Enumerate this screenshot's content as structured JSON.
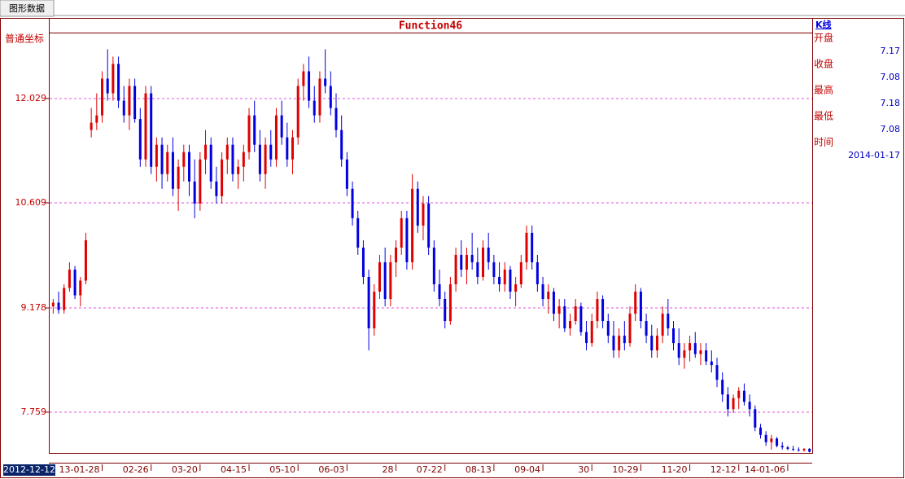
{
  "tab": "图形数据",
  "chart_data": {
    "type": "candlestick",
    "title": "Function46",
    "y_label": "普通坐标",
    "up_color": "#e00000",
    "down_color": "#0000e0",
    "grid": true,
    "ylim": [
      7.204,
      12.927
    ],
    "yticks": [
      7.759,
      9.178,
      10.609,
      12.029
    ],
    "categories": [
      "2012-12-12",
      null,
      null,
      null,
      null,
      null,
      null,
      null,
      null,
      "13-01-28",
      null,
      null,
      null,
      null,
      null,
      null,
      null,
      null,
      "02-26",
      null,
      null,
      null,
      null,
      null,
      null,
      null,
      null,
      "03-20",
      null,
      null,
      null,
      null,
      null,
      null,
      null,
      null,
      "04-15",
      null,
      null,
      null,
      null,
      null,
      null,
      null,
      null,
      "05-10",
      null,
      null,
      null,
      null,
      null,
      null,
      null,
      null,
      "06-03",
      null,
      null,
      null,
      null,
      null,
      null,
      null,
      null,
      "28",
      null,
      null,
      null,
      null,
      null,
      null,
      null,
      null,
      "07-22",
      null,
      null,
      null,
      null,
      null,
      null,
      null,
      null,
      "08-13",
      null,
      null,
      null,
      null,
      null,
      null,
      null,
      null,
      "09-04",
      null,
      null,
      null,
      null,
      null,
      null,
      null,
      null,
      "30",
      null,
      null,
      null,
      null,
      null,
      null,
      null,
      null,
      "10-29",
      null,
      null,
      null,
      null,
      null,
      null,
      null,
      null,
      "11-20",
      null,
      null,
      null,
      null,
      null,
      null,
      null,
      null,
      "12-12",
      null,
      null,
      null,
      null,
      null,
      null,
      null,
      null,
      "14-01-06",
      null,
      null,
      null,
      null
    ],
    "ohlc": [
      [
        9.2,
        9.3,
        9.1,
        9.25
      ],
      [
        9.25,
        9.4,
        9.1,
        9.15
      ],
      [
        9.15,
        9.5,
        9.1,
        9.45
      ],
      [
        9.45,
        9.8,
        9.4,
        9.7
      ],
      [
        9.7,
        9.75,
        9.3,
        9.35
      ],
      [
        9.35,
        9.6,
        9.2,
        9.55
      ],
      [
        9.55,
        10.2,
        9.5,
        10.1
      ],
      [
        11.6,
        11.9,
        11.5,
        11.7
      ],
      [
        11.7,
        12.1,
        11.6,
        11.8
      ],
      [
        11.8,
        12.4,
        11.7,
        12.3
      ],
      [
        12.3,
        12.7,
        12.0,
        12.1
      ],
      [
        12.1,
        12.6,
        12.0,
        12.5
      ],
      [
        12.5,
        12.6,
        11.9,
        12.0
      ],
      [
        12.0,
        12.2,
        11.7,
        11.8
      ],
      [
        11.8,
        12.3,
        11.6,
        12.2
      ],
      [
        12.2,
        12.3,
        11.7,
        11.75
      ],
      [
        11.75,
        11.9,
        11.1,
        11.2
      ],
      [
        11.2,
        12.2,
        11.1,
        12.1
      ],
      [
        12.1,
        12.2,
        11.0,
        11.1
      ],
      [
        11.1,
        11.5,
        10.9,
        11.4
      ],
      [
        11.4,
        11.5,
        10.8,
        11.0
      ],
      [
        11.0,
        11.4,
        10.9,
        11.3
      ],
      [
        11.3,
        11.5,
        10.7,
        10.8
      ],
      [
        10.8,
        11.2,
        10.5,
        11.1
      ],
      [
        11.1,
        11.4,
        10.9,
        11.3
      ],
      [
        11.3,
        11.4,
        10.7,
        10.9
      ],
      [
        10.9,
        11.2,
        10.4,
        10.6
      ],
      [
        10.6,
        11.3,
        10.5,
        11.2
      ],
      [
        11.2,
        11.6,
        11.0,
        11.4
      ],
      [
        11.4,
        11.5,
        10.8,
        10.9
      ],
      [
        10.9,
        11.1,
        10.6,
        10.7
      ],
      [
        10.7,
        11.3,
        10.6,
        11.2
      ],
      [
        11.2,
        11.5,
        11.0,
        11.4
      ],
      [
        11.4,
        11.5,
        10.9,
        11.0
      ],
      [
        11.0,
        11.2,
        10.8,
        11.1
      ],
      [
        11.1,
        11.4,
        10.9,
        11.3
      ],
      [
        11.3,
        11.9,
        11.2,
        11.8
      ],
      [
        11.8,
        12.0,
        11.3,
        11.4
      ],
      [
        11.4,
        11.6,
        10.9,
        11.0
      ],
      [
        11.0,
        11.5,
        10.8,
        11.4
      ],
      [
        11.4,
        11.6,
        11.1,
        11.2
      ],
      [
        11.2,
        11.9,
        11.1,
        11.8
      ],
      [
        11.8,
        12.0,
        11.4,
        11.5
      ],
      [
        11.5,
        11.7,
        11.1,
        11.2
      ],
      [
        11.2,
        11.6,
        11.0,
        11.5
      ],
      [
        11.5,
        12.3,
        11.4,
        12.2
      ],
      [
        12.2,
        12.5,
        12.0,
        12.4
      ],
      [
        12.4,
        12.6,
        11.9,
        12.0
      ],
      [
        12.0,
        12.2,
        11.7,
        11.8
      ],
      [
        11.8,
        12.4,
        11.7,
        12.3
      ],
      [
        12.3,
        12.7,
        12.1,
        12.2
      ],
      [
        12.2,
        12.4,
        11.8,
        11.9
      ],
      [
        11.9,
        12.1,
        11.5,
        11.6
      ],
      [
        11.6,
        11.8,
        11.1,
        11.2
      ],
      [
        11.2,
        11.3,
        10.7,
        10.8
      ],
      [
        10.8,
        10.9,
        10.3,
        10.4
      ],
      [
        10.4,
        10.5,
        9.9,
        10.0
      ],
      [
        10.0,
        10.1,
        9.5,
        9.6
      ],
      [
        9.6,
        9.7,
        8.6,
        8.9
      ],
      [
        8.9,
        9.5,
        8.8,
        9.4
      ],
      [
        9.4,
        9.9,
        9.3,
        9.8
      ],
      [
        9.8,
        10.0,
        9.2,
        9.3
      ],
      [
        9.3,
        9.9,
        9.2,
        9.8
      ],
      [
        9.8,
        10.1,
        9.6,
        10.0
      ],
      [
        10.0,
        10.5,
        9.9,
        10.4
      ],
      [
        10.4,
        10.5,
        9.7,
        9.8
      ],
      [
        9.8,
        11.0,
        9.7,
        10.8
      ],
      [
        10.8,
        10.9,
        10.2,
        10.3
      ],
      [
        10.3,
        10.7,
        10.1,
        10.6
      ],
      [
        10.6,
        10.7,
        9.9,
        10.0
      ],
      [
        10.0,
        10.1,
        9.4,
        9.5
      ],
      [
        9.5,
        9.7,
        9.2,
        9.3
      ],
      [
        9.3,
        9.4,
        8.9,
        9.0
      ],
      [
        9.0,
        9.6,
        8.95,
        9.5
      ],
      [
        9.5,
        10.0,
        9.4,
        9.9
      ],
      [
        9.9,
        10.1,
        9.6,
        9.7
      ],
      [
        9.7,
        10.0,
        9.5,
        9.9
      ],
      [
        9.9,
        10.2,
        9.7,
        9.8
      ],
      [
        9.8,
        10.0,
        9.5,
        9.6
      ],
      [
        9.6,
        10.1,
        9.55,
        10.0
      ],
      [
        10.0,
        10.2,
        9.7,
        9.8
      ],
      [
        9.8,
        9.9,
        9.5,
        9.6
      ],
      [
        9.6,
        9.8,
        9.4,
        9.5
      ],
      [
        9.5,
        9.8,
        9.4,
        9.7
      ],
      [
        9.7,
        9.75,
        9.3,
        9.4
      ],
      [
        9.4,
        9.6,
        9.2,
        9.5
      ],
      [
        9.5,
        9.9,
        9.45,
        9.8
      ],
      [
        9.8,
        10.3,
        9.7,
        10.2
      ],
      [
        10.2,
        10.3,
        9.7,
        9.8
      ],
      [
        9.8,
        9.9,
        9.4,
        9.5
      ],
      [
        9.5,
        9.6,
        9.2,
        9.3
      ],
      [
        9.3,
        9.5,
        9.1,
        9.4
      ],
      [
        9.4,
        9.45,
        9.0,
        9.1
      ],
      [
        9.1,
        9.3,
        8.9,
        9.2
      ],
      [
        9.2,
        9.3,
        8.85,
        8.9
      ],
      [
        8.9,
        9.1,
        8.8,
        9.0
      ],
      [
        9.0,
        9.3,
        8.95,
        9.2
      ],
      [
        9.2,
        9.25,
        8.8,
        8.85
      ],
      [
        8.85,
        9.0,
        8.6,
        8.7
      ],
      [
        8.7,
        9.1,
        8.65,
        9.0
      ],
      [
        9.0,
        9.4,
        8.9,
        9.3
      ],
      [
        9.3,
        9.35,
        8.9,
        9.0
      ],
      [
        9.0,
        9.1,
        8.7,
        8.8
      ],
      [
        8.8,
        9.0,
        8.5,
        8.6
      ],
      [
        8.6,
        8.9,
        8.5,
        8.8
      ],
      [
        8.8,
        9.0,
        8.6,
        8.7
      ],
      [
        8.7,
        9.2,
        8.65,
        9.1
      ],
      [
        9.1,
        9.5,
        9.0,
        9.4
      ],
      [
        9.4,
        9.45,
        8.9,
        9.0
      ],
      [
        9.0,
        9.1,
        8.7,
        8.8
      ],
      [
        8.8,
        8.95,
        8.5,
        8.6
      ],
      [
        8.6,
        8.9,
        8.5,
        8.8
      ],
      [
        8.8,
        9.2,
        8.7,
        9.1
      ],
      [
        9.1,
        9.3,
        8.8,
        8.9
      ],
      [
        8.9,
        9.0,
        8.6,
        8.7
      ],
      [
        8.7,
        8.9,
        8.4,
        8.5
      ],
      [
        8.5,
        8.7,
        8.35,
        8.6
      ],
      [
        8.6,
        8.8,
        8.45,
        8.7
      ],
      [
        8.7,
        8.85,
        8.5,
        8.55
      ],
      [
        8.55,
        8.7,
        8.4,
        8.6
      ],
      [
        8.6,
        8.7,
        8.4,
        8.45
      ],
      [
        8.45,
        8.6,
        8.3,
        8.4
      ],
      [
        8.4,
        8.5,
        8.1,
        8.2
      ],
      [
        8.2,
        8.3,
        7.9,
        8.0
      ],
      [
        8.0,
        8.1,
        7.7,
        7.8
      ],
      [
        7.8,
        8.0,
        7.75,
        7.95
      ],
      [
        7.95,
        8.1,
        7.8,
        8.05
      ],
      [
        8.05,
        8.15,
        7.85,
        7.9
      ],
      [
        7.9,
        8.0,
        7.7,
        7.8
      ],
      [
        7.8,
        7.85,
        7.5,
        7.55
      ],
      [
        7.55,
        7.6,
        7.4,
        7.45
      ],
      [
        7.45,
        7.5,
        7.3,
        7.35
      ],
      [
        7.35,
        7.45,
        7.25,
        7.4
      ],
      [
        7.4,
        7.42,
        7.28,
        7.3
      ],
      [
        7.3,
        7.35,
        7.25,
        7.28
      ],
      [
        7.28,
        7.3,
        7.24,
        7.26
      ],
      [
        7.26,
        7.3,
        7.23,
        7.25
      ],
      [
        7.25,
        7.28,
        7.22,
        7.24
      ],
      [
        7.24,
        7.27,
        7.22,
        7.26
      ],
      [
        7.26,
        7.27,
        7.21,
        7.22
      ]
    ]
  },
  "info_panel": {
    "header": "K线",
    "rows": [
      {
        "label": "开盘",
        "value": 7.17
      },
      {
        "label": "收盘",
        "value": 7.08
      },
      {
        "label": "最高",
        "value": 7.18
      },
      {
        "label": "最低",
        "value": 7.08
      },
      {
        "label": "时间",
        "value": "2014-01-17"
      }
    ]
  }
}
